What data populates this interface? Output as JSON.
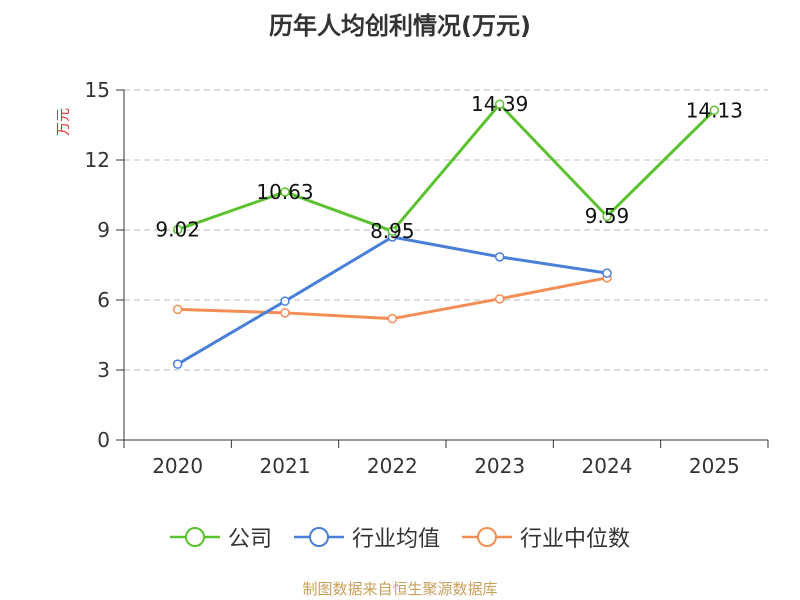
{
  "title": "历年人均创利情况(万元)",
  "source": "制图数据来自恒生聚源数据库",
  "colors": {
    "axis": "#333333",
    "grid": "#bbbbbb",
    "ylabel": "#e03030"
  },
  "chart_data": {
    "type": "line",
    "title": "历年人均创利情况(万元)",
    "xlabel": "",
    "ylabel": "万元",
    "categories": [
      "2020",
      "2021",
      "2022",
      "2023",
      "2024",
      "2025"
    ],
    "ylim": [
      0,
      15
    ],
    "yticks": [
      0,
      3,
      6,
      9,
      12,
      15
    ],
    "grid": "horizontal dashed",
    "legend_position": "bottom",
    "series": [
      {
        "name": "公司",
        "color": "#5cc12e",
        "values": [
          9.02,
          10.63,
          8.95,
          14.39,
          9.59,
          14.13
        ],
        "labels": [
          "9.02",
          "10.63",
          "8.95",
          "14.39",
          "9.59",
          "14.13"
        ]
      },
      {
        "name": "行业均值",
        "color": "#4a7fd8",
        "values": [
          3.25,
          5.95,
          8.7,
          7.85,
          7.15,
          null
        ]
      },
      {
        "name": "行业中位数",
        "color": "#f58d56",
        "values": [
          5.6,
          5.45,
          5.2,
          6.05,
          6.95,
          null
        ]
      }
    ]
  }
}
